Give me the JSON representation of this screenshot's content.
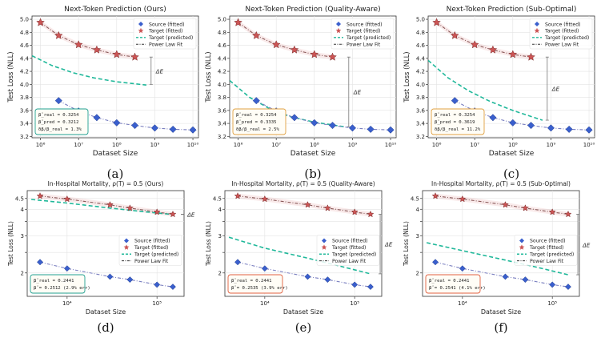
{
  "colors": {
    "source": "#3a5fcd",
    "source_line": "#7a7fc0",
    "target": "#cc5555",
    "target_line": "#8a5a5a",
    "predicted": "#20b89a",
    "powerlaw": "#333333"
  },
  "chart_data": [
    {
      "type": "line",
      "panel": "(a)",
      "title": "Next-Token Prediction (Ours)",
      "xlabel": "Dataset Size",
      "ylabel": "Test Loss (NLL)",
      "xscale": "log",
      "xlim": [
        600000,
        14000000000
      ],
      "ylim": [
        3.18,
        5.05
      ],
      "yticks": [
        3.2,
        3.4,
        3.6,
        3.8,
        4.0,
        4.2,
        4.4,
        4.6,
        4.8,
        5.0
      ],
      "ytick_labels": [
        "3.2",
        "3.4",
        "3.6",
        "3.8",
        "4.0",
        "4.2",
        "4.4",
        "4.6",
        "4.8",
        "5.0"
      ],
      "xticks": [
        1000000,
        10000000,
        100000000,
        1000000000,
        10000000000
      ],
      "xtick_labels": [
        "10⁶",
        "10⁷",
        "10⁸",
        "10⁹",
        "10¹⁰"
      ],
      "legend": [
        "Source (fitted)",
        "Target (fitted)",
        "Target (predicted)",
        "Power Law Fit"
      ],
      "legend_position": "top-right",
      "source": {
        "x": [
          3000000,
          10000000,
          30000000,
          100000000,
          300000000,
          1000000000,
          3000000000,
          10000000000
        ],
        "y": [
          3.75,
          3.59,
          3.49,
          3.41,
          3.37,
          3.33,
          3.31,
          3.3
        ]
      },
      "target": {
        "x": [
          1000000,
          3000000,
          10000000,
          30000000,
          100000000,
          300000000
        ],
        "y": [
          4.95,
          4.75,
          4.61,
          4.53,
          4.46,
          4.42
        ]
      },
      "predicted": {
        "x": [
          600000,
          600000000
        ],
        "y": [
          4.44,
          3.99
        ],
        "pts": [
          [
            600000,
            4.44
          ],
          [
            2000000,
            4.29
          ],
          [
            7000000,
            4.18
          ],
          [
            25000000,
            4.1
          ],
          [
            100000000,
            4.04
          ],
          [
            600000000,
            3.99
          ]
        ]
      },
      "delta": {
        "label": "ΔE",
        "x": 800000000,
        "y1": 4.42,
        "y2": 4.0,
        "side": "right"
      },
      "textbox": {
        "lines": [
          "β̂_real = 0.3254",
          "β̂_pred = 0.3212",
          "δβ/β_real = 1.3%"
        ],
        "border": "#20a090"
      }
    },
    {
      "type": "line",
      "panel": "(b)",
      "title": "Next-Token Prediction (Quality-Aware)",
      "xlabel": "Dataset Size",
      "ylabel": "Test Loss (NLL)",
      "xscale": "log",
      "xlim": [
        600000,
        14000000000
      ],
      "ylim": [
        3.18,
        5.05
      ],
      "yticks": [
        3.2,
        3.4,
        3.6,
        3.8,
        4.0,
        4.2,
        4.4,
        4.6,
        4.8,
        5.0
      ],
      "ytick_labels": [
        "3.2",
        "3.4",
        "3.6",
        "3.8",
        "4.0",
        "4.2",
        "4.4",
        "4.6",
        "4.8",
        "5.0"
      ],
      "xticks": [
        1000000,
        10000000,
        100000000,
        1000000000,
        10000000000
      ],
      "xtick_labels": [
        "10⁶",
        "10⁷",
        "10⁸",
        "10⁹",
        "10¹⁰"
      ],
      "legend": [
        "Source (fitted)",
        "Target (fitted)",
        "Target (predicted)",
        "Power Law Fit"
      ],
      "legend_position": "top-right",
      "source": {
        "x": [
          3000000,
          10000000,
          30000000,
          100000000,
          300000000,
          1000000000,
          3000000000,
          10000000000
        ],
        "y": [
          3.75,
          3.59,
          3.49,
          3.41,
          3.37,
          3.33,
          3.31,
          3.3
        ]
      },
      "target": {
        "x": [
          1000000,
          3000000,
          10000000,
          30000000,
          100000000,
          300000000
        ],
        "y": [
          4.95,
          4.75,
          4.61,
          4.53,
          4.46,
          4.42
        ]
      },
      "predicted": {
        "pts": [
          [
            600000,
            4.06
          ],
          [
            2000000,
            3.8
          ],
          [
            7000000,
            3.62
          ],
          [
            25000000,
            3.5
          ],
          [
            100000000,
            3.42
          ],
          [
            600000000,
            3.35
          ]
        ]
      },
      "delta": {
        "label": "ΔE",
        "x": 800000000,
        "y1": 4.42,
        "y2": 3.35,
        "side": "right"
      },
      "textbox": {
        "lines": [
          "β̂_real = 0.3254",
          "β̂_pred = 0.3335",
          "δβ/β_real = 2.5%"
        ],
        "border": "#e0a040"
      }
    },
    {
      "type": "line",
      "panel": "(c)",
      "title": "Next-Token Prediction (Sub-Optimal)",
      "xlabel": "Dataset Size",
      "ylabel": "Test Loss (NLL)",
      "xscale": "log",
      "xlim": [
        600000,
        14000000000
      ],
      "ylim": [
        3.18,
        5.05
      ],
      "yticks": [
        3.2,
        3.4,
        3.6,
        3.8,
        4.0,
        4.2,
        4.4,
        4.6,
        4.8,
        5.0
      ],
      "ytick_labels": [
        "3.2",
        "3.4",
        "3.6",
        "3.8",
        "4.0",
        "4.2",
        "4.4",
        "4.6",
        "4.8",
        "5.0"
      ],
      "xticks": [
        1000000,
        10000000,
        100000000,
        1000000000,
        10000000000
      ],
      "xtick_labels": [
        "10⁶",
        "10⁷",
        "10⁸",
        "10⁹",
        "10¹⁰"
      ],
      "legend": [
        "Source (fitted)",
        "Target (fitted)",
        "Target (predicted)",
        "Power Law Fit"
      ],
      "legend_position": "top-right",
      "source": {
        "x": [
          3000000,
          10000000,
          30000000,
          100000000,
          300000000,
          1000000000,
          3000000000,
          10000000000
        ],
        "y": [
          3.75,
          3.59,
          3.49,
          3.41,
          3.37,
          3.33,
          3.31,
          3.3
        ]
      },
      "target": {
        "x": [
          1000000,
          3000000,
          10000000,
          30000000,
          100000000,
          300000000
        ],
        "y": [
          4.95,
          4.75,
          4.61,
          4.53,
          4.46,
          4.42
        ]
      },
      "predicted": {
        "pts": [
          [
            600000,
            4.37
          ],
          [
            2000000,
            4.1
          ],
          [
            7000000,
            3.9
          ],
          [
            25000000,
            3.74
          ],
          [
            100000000,
            3.6
          ],
          [
            600000000,
            3.45
          ]
        ]
      },
      "delta": {
        "label": "ΔE",
        "x": 800000000,
        "y1": 4.42,
        "y2": 3.45,
        "side": "right"
      },
      "textbox": {
        "lines": [
          "β̂_real = 0.3254",
          "β̂_pred = 0.3619",
          "δβ/β_real = 11.2%"
        ],
        "border": "#e0a040"
      }
    },
    {
      "type": "line",
      "panel": "(d)",
      "title": "In-Hospital Mortality, ρ(T) = 0.5 (Ours)",
      "xlabel": "Dataset Size",
      "ylabel": "Test Loss (NLL)",
      "xscale": "log",
      "ylog": true,
      "xlim": [
        3600,
        200000
      ],
      "ylim": [
        1.55,
        4.9
      ],
      "yticks": [
        2,
        2.5,
        3,
        3.5,
        4,
        4.5
      ],
      "ytick_labels": [
        "2",
        "",
        "3",
        "",
        "4",
        "4.5"
      ],
      "xticks": [
        10000,
        100000
      ],
      "xtick_labels": [
        "10⁴",
        "10⁵"
      ],
      "legend": [
        "Source (fitted)",
        "Target (fitted)",
        "Target (predicted)",
        "Power Law Fit"
      ],
      "legend_position": "center-right",
      "source": {
        "x": [
          5000,
          10000,
          30000,
          50000,
          100000,
          150000
        ],
        "y": [
          2.25,
          2.1,
          1.92,
          1.86,
          1.76,
          1.72
        ]
      },
      "target": {
        "x": [
          5000,
          10000,
          30000,
          50000,
          100000,
          150000
        ],
        "y": [
          4.62,
          4.47,
          4.2,
          4.05,
          3.88,
          3.79
        ]
      },
      "predicted": {
        "pts": [
          [
            4000,
            4.45
          ],
          [
            10000,
            4.28
          ],
          [
            30000,
            4.05
          ],
          [
            70000,
            3.9
          ],
          [
            150000,
            3.78
          ]
        ]
      },
      "delta": {
        "label": "ΔE",
        "x": 170000,
        "y1": 3.79,
        "y2": 3.78,
        "side": "right"
      },
      "textbox": {
        "lines": [
          "β̂_real = 0.2441",
          "β̂ = 0.2512 (2.9% err)"
        ],
        "border": "#20a090"
      }
    },
    {
      "type": "line",
      "panel": "(e)",
      "title": "In-Hospital Mortality, ρ(T) = 0.5 (Quality-Aware)",
      "xlabel": "Dataset Size",
      "ylabel": "Test Loss (NLL)",
      "xscale": "log",
      "ylog": true,
      "xlim": [
        3600,
        200000
      ],
      "ylim": [
        1.55,
        4.9
      ],
      "yticks": [
        2,
        2.5,
        3,
        3.5,
        4,
        4.5
      ],
      "ytick_labels": [
        "2",
        "",
        "3",
        "",
        "4",
        "4.5"
      ],
      "xticks": [
        10000,
        100000
      ],
      "xtick_labels": [
        "10⁴",
        "10⁵"
      ],
      "legend": [
        "Source (fitted)",
        "Target (fitted)",
        "Target (predicted)",
        "Power Law Fit"
      ],
      "legend_position": "center-right",
      "source": {
        "x": [
          5000,
          10000,
          30000,
          50000,
          100000,
          150000
        ],
        "y": [
          2.25,
          2.1,
          1.92,
          1.86,
          1.76,
          1.72
        ]
      },
      "target": {
        "x": [
          5000,
          10000,
          30000,
          50000,
          100000,
          150000
        ],
        "y": [
          4.62,
          4.47,
          4.2,
          4.05,
          3.88,
          3.79
        ]
      },
      "predicted": {
        "pts": [
          [
            4000,
            2.95
          ],
          [
            10000,
            2.62
          ],
          [
            30000,
            2.35
          ],
          [
            70000,
            2.15
          ],
          [
            150000,
            1.98
          ]
        ]
      },
      "delta": {
        "label": "ΔE",
        "x": 170000,
        "y1": 3.79,
        "y2": 1.98,
        "side": "right"
      },
      "textbox": {
        "lines": [
          "β̂_real = 0.2441",
          "β̂ = 0.2535 (3.9% err)"
        ],
        "border": "#e06040"
      }
    },
    {
      "type": "line",
      "panel": "(f)",
      "title": "In-Hospital Mortality, ρ(T) = 0.5 (Sub-Optimal)",
      "xlabel": "Dataset Size",
      "ylabel": "Test Loss (NLL)",
      "xscale": "log",
      "ylog": true,
      "xlim": [
        3600,
        200000
      ],
      "ylim": [
        1.55,
        4.9
      ],
      "yticks": [
        2,
        2.5,
        3,
        3.5,
        4,
        4.5
      ],
      "ytick_labels": [
        "2",
        "",
        "3",
        "",
        "4",
        "4.5"
      ],
      "xticks": [
        10000,
        100000
      ],
      "xtick_labels": [
        "10⁴",
        "10⁵"
      ],
      "legend": [
        "Source (fitted)",
        "Target (fitted)",
        "Target (predicted)",
        "Power Law Fit"
      ],
      "legend_position": "center-right",
      "source": {
        "x": [
          5000,
          10000,
          30000,
          50000,
          100000,
          150000
        ],
        "y": [
          2.25,
          2.1,
          1.92,
          1.86,
          1.76,
          1.72
        ]
      },
      "target": {
        "x": [
          5000,
          10000,
          30000,
          50000,
          100000,
          150000
        ],
        "y": [
          4.62,
          4.47,
          4.2,
          4.05,
          3.88,
          3.79
        ]
      },
      "predicted": {
        "pts": [
          [
            4000,
            2.78
          ],
          [
            10000,
            2.55
          ],
          [
            30000,
            2.3
          ],
          [
            70000,
            2.12
          ],
          [
            150000,
            1.96
          ]
        ]
      },
      "delta": {
        "label": "ΔE",
        "x": 170000,
        "y1": 3.79,
        "y2": 1.96,
        "side": "right"
      },
      "textbox": {
        "lines": [
          "β̂_real = 0.2441",
          "β̂ = 0.2541 (4.1% err)"
        ],
        "border": "#e06040"
      }
    }
  ]
}
